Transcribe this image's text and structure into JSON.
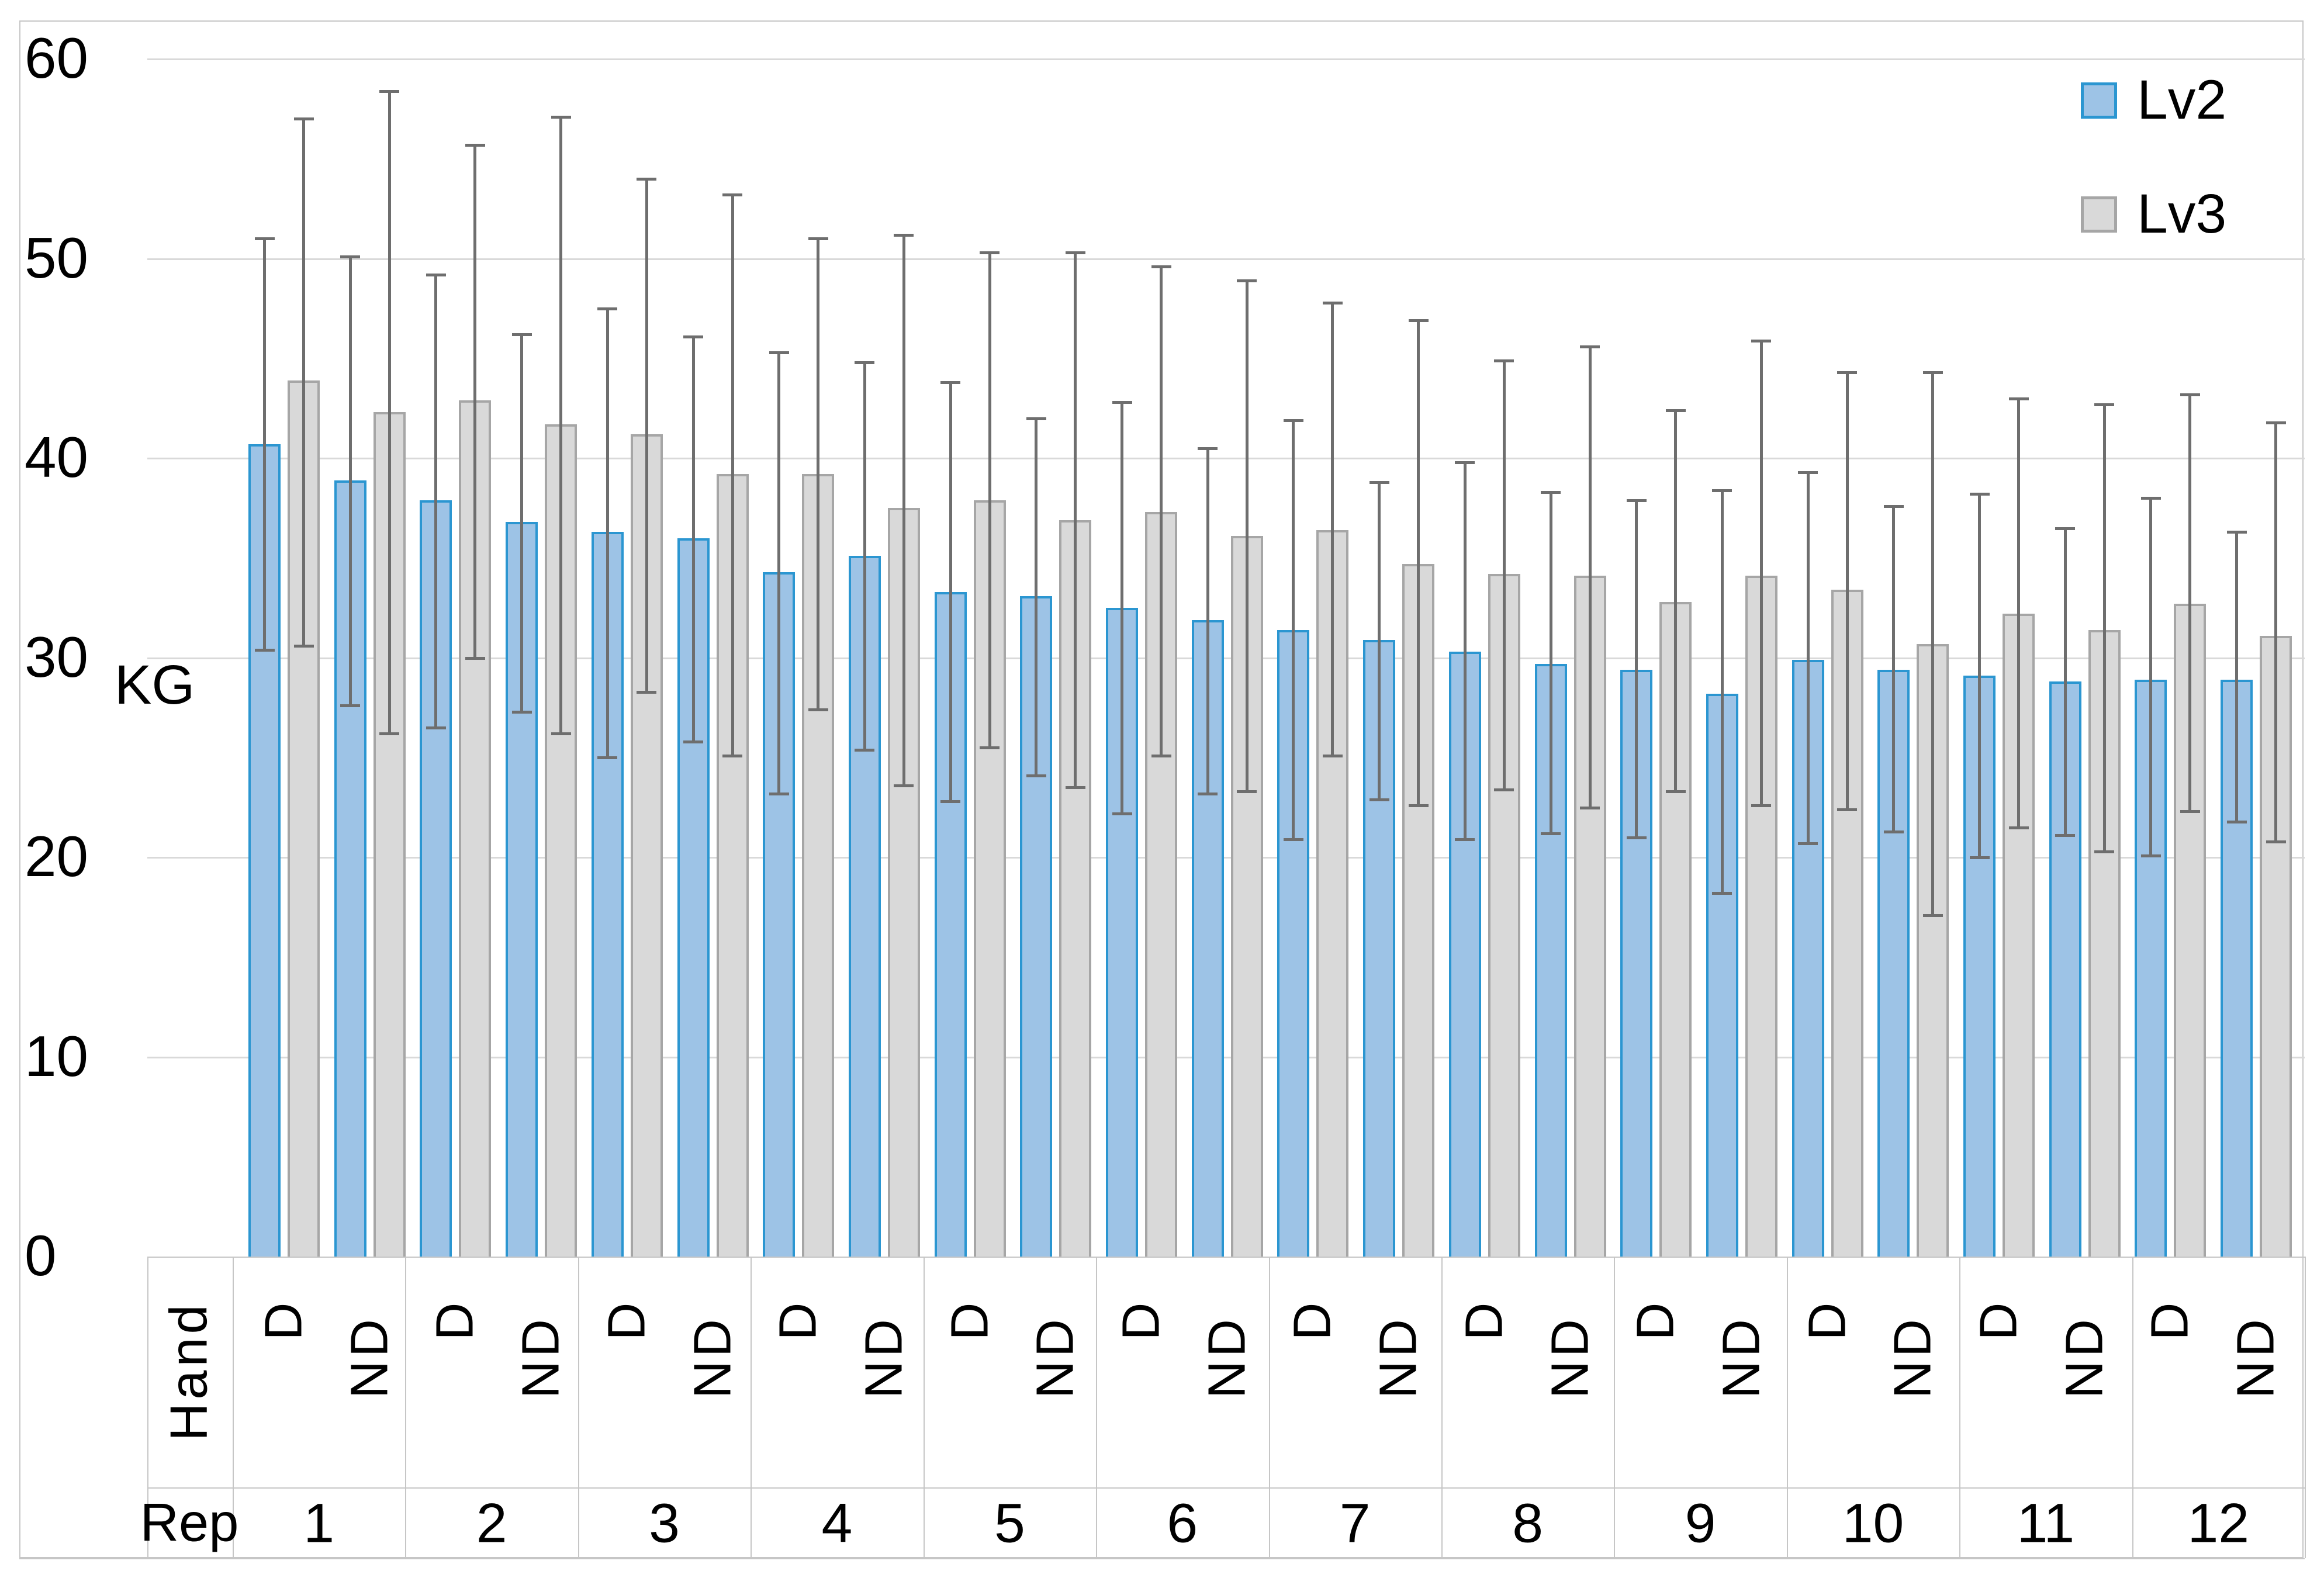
{
  "chart_data": {
    "type": "bar",
    "title": "",
    "ylabel": "KG",
    "ylim": [
      0,
      60
    ],
    "yticks": [
      0,
      10,
      20,
      30,
      40,
      50,
      60
    ],
    "grid": true,
    "error_bars": true,
    "legend": {
      "position": "top-right",
      "entries": [
        {
          "label": "Lv2",
          "fill": "#9dc3e6",
          "border": "#2b96d1"
        },
        {
          "label": "Lv3",
          "fill": "#d9d9d9",
          "border": "#a6a6a6"
        }
      ]
    },
    "x_axis": {
      "hand_row_label": "Hand",
      "rep_row_label": "Rep",
      "reps": [
        "1",
        "2",
        "3",
        "4",
        "5",
        "6",
        "7",
        "8",
        "9",
        "10",
        "11",
        "12"
      ]
    },
    "series_names": [
      "Lv2",
      "Lv3"
    ],
    "groups": [
      {
        "rep": "1",
        "hand": "D",
        "lv2": {
          "v": 40.7,
          "lo": 30.4,
          "hi": 51.0
        },
        "lv3": {
          "v": 43.9,
          "lo": 30.6,
          "hi": 57.0
        }
      },
      {
        "rep": "1",
        "hand": "ND",
        "lv2": {
          "v": 38.9,
          "lo": 27.6,
          "hi": 50.1
        },
        "lv3": {
          "v": 42.3,
          "lo": 26.2,
          "hi": 58.4
        }
      },
      {
        "rep": "2",
        "hand": "D",
        "lv2": {
          "v": 37.9,
          "lo": 26.5,
          "hi": 49.2
        },
        "lv3": {
          "v": 42.9,
          "lo": 30.0,
          "hi": 55.7
        }
      },
      {
        "rep": "2",
        "hand": "ND",
        "lv2": {
          "v": 36.8,
          "lo": 27.3,
          "hi": 46.2
        },
        "lv3": {
          "v": 41.7,
          "lo": 26.2,
          "hi": 57.1
        }
      },
      {
        "rep": "3",
        "hand": "D",
        "lv2": {
          "v": 36.3,
          "lo": 25.0,
          "hi": 47.5
        },
        "lv3": {
          "v": 41.2,
          "lo": 28.3,
          "hi": 54.0
        }
      },
      {
        "rep": "3",
        "hand": "ND",
        "lv2": {
          "v": 36.0,
          "lo": 25.8,
          "hi": 46.1
        },
        "lv3": {
          "v": 39.2,
          "lo": 25.1,
          "hi": 53.2
        }
      },
      {
        "rep": "4",
        "hand": "D",
        "lv2": {
          "v": 34.3,
          "lo": 23.2,
          "hi": 45.3
        },
        "lv3": {
          "v": 39.2,
          "lo": 27.4,
          "hi": 51.0
        }
      },
      {
        "rep": "4",
        "hand": "ND",
        "lv2": {
          "v": 35.1,
          "lo": 25.4,
          "hi": 44.8
        },
        "lv3": {
          "v": 37.5,
          "lo": 23.6,
          "hi": 51.2
        }
      },
      {
        "rep": "5",
        "hand": "D",
        "lv2": {
          "v": 33.3,
          "lo": 22.8,
          "hi": 43.8
        },
        "lv3": {
          "v": 37.9,
          "lo": 25.5,
          "hi": 50.3
        }
      },
      {
        "rep": "5",
        "hand": "ND",
        "lv2": {
          "v": 33.1,
          "lo": 24.1,
          "hi": 42.0
        },
        "lv3": {
          "v": 36.9,
          "lo": 23.5,
          "hi": 50.3
        }
      },
      {
        "rep": "6",
        "hand": "D",
        "lv2": {
          "v": 32.5,
          "lo": 22.2,
          "hi": 42.8
        },
        "lv3": {
          "v": 37.3,
          "lo": 25.1,
          "hi": 49.6
        }
      },
      {
        "rep": "6",
        "hand": "ND",
        "lv2": {
          "v": 31.9,
          "lo": 23.2,
          "hi": 40.5
        },
        "lv3": {
          "v": 36.1,
          "lo": 23.3,
          "hi": 48.9
        }
      },
      {
        "rep": "7",
        "hand": "D",
        "lv2": {
          "v": 31.4,
          "lo": 20.9,
          "hi": 41.9
        },
        "lv3": {
          "v": 36.4,
          "lo": 25.1,
          "hi": 47.8
        }
      },
      {
        "rep": "7",
        "hand": "ND",
        "lv2": {
          "v": 30.9,
          "lo": 22.9,
          "hi": 38.8
        },
        "lv3": {
          "v": 34.7,
          "lo": 22.6,
          "hi": 46.9
        }
      },
      {
        "rep": "8",
        "hand": "D",
        "lv2": {
          "v": 30.3,
          "lo": 20.9,
          "hi": 39.8
        },
        "lv3": {
          "v": 34.2,
          "lo": 23.4,
          "hi": 44.9
        }
      },
      {
        "rep": "8",
        "hand": "ND",
        "lv2": {
          "v": 29.7,
          "lo": 21.2,
          "hi": 38.3
        },
        "lv3": {
          "v": 34.1,
          "lo": 22.5,
          "hi": 45.6
        }
      },
      {
        "rep": "9",
        "hand": "D",
        "lv2": {
          "v": 29.4,
          "lo": 21.0,
          "hi": 37.9
        },
        "lv3": {
          "v": 32.8,
          "lo": 23.3,
          "hi": 42.4
        }
      },
      {
        "rep": "9",
        "hand": "ND",
        "lv2": {
          "v": 28.2,
          "lo": 18.2,
          "hi": 38.4
        },
        "lv3": {
          "v": 34.1,
          "lo": 22.6,
          "hi": 45.9
        }
      },
      {
        "rep": "10",
        "hand": "D",
        "lv2": {
          "v": 29.9,
          "lo": 20.7,
          "hi": 39.3
        },
        "lv3": {
          "v": 33.4,
          "lo": 22.4,
          "hi": 44.3
        }
      },
      {
        "rep": "10",
        "hand": "ND",
        "lv2": {
          "v": 29.4,
          "lo": 21.3,
          "hi": 37.6
        },
        "lv3": {
          "v": 30.7,
          "lo": 17.1,
          "hi": 44.3
        }
      },
      {
        "rep": "11",
        "hand": "D",
        "lv2": {
          "v": 29.1,
          "lo": 20.0,
          "hi": 38.2
        },
        "lv3": {
          "v": 32.2,
          "lo": 21.5,
          "hi": 43.0
        }
      },
      {
        "rep": "11",
        "hand": "ND",
        "lv2": {
          "v": 28.8,
          "lo": 21.1,
          "hi": 36.5
        },
        "lv3": {
          "v": 31.4,
          "lo": 20.3,
          "hi": 42.7
        }
      },
      {
        "rep": "12",
        "hand": "D",
        "lv2": {
          "v": 28.9,
          "lo": 20.1,
          "hi": 38.0
        },
        "lv3": {
          "v": 32.7,
          "lo": 22.3,
          "hi": 43.2
        }
      },
      {
        "rep": "12",
        "hand": "ND",
        "lv2": {
          "v": 28.9,
          "lo": 21.8,
          "hi": 36.3
        },
        "lv3": {
          "v": 31.1,
          "lo": 20.8,
          "hi": 41.8
        }
      }
    ]
  },
  "colors": {
    "gridline": "#d9d9d9",
    "table_line": "#c6c6c6",
    "error_bar": "#6e6e6e",
    "text": "#000000",
    "background": "#ffffff"
  }
}
